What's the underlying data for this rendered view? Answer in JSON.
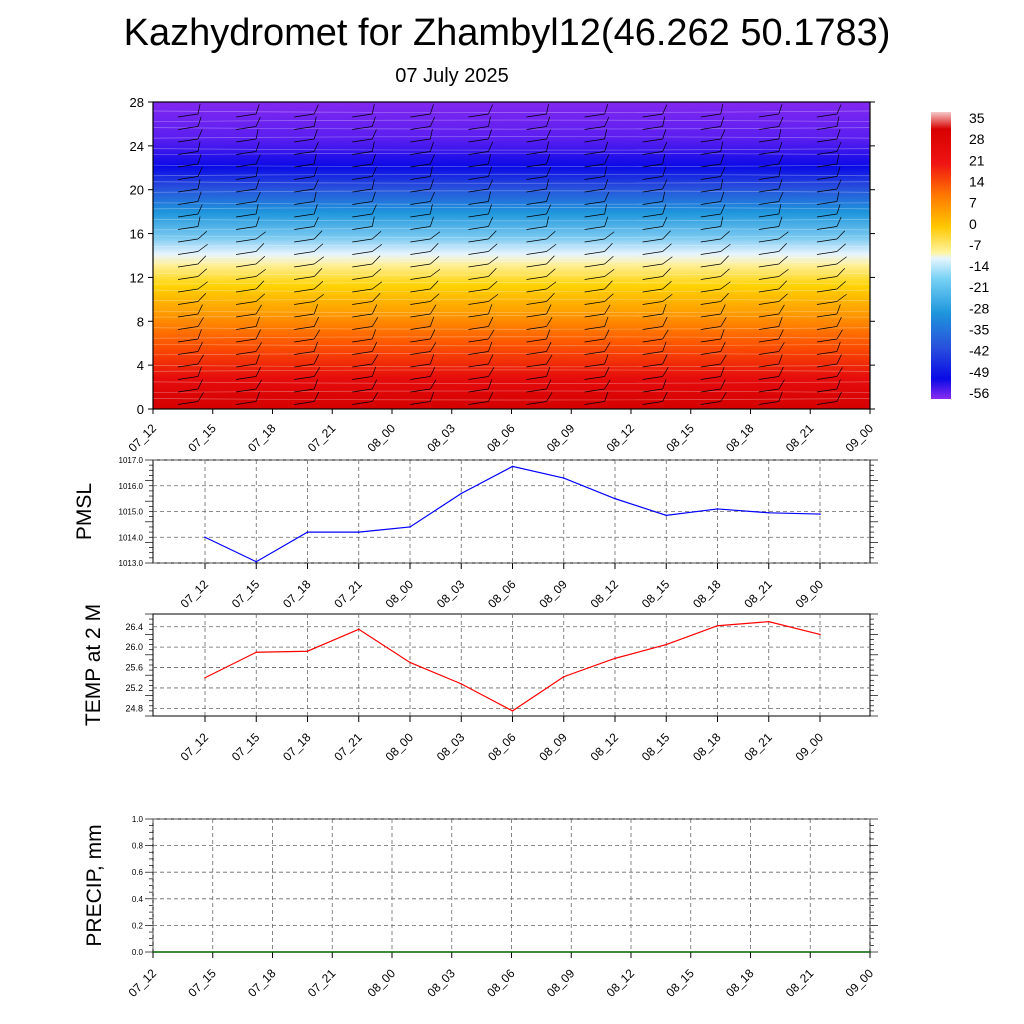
{
  "title": "Kazhydromet for Zhambyl12(46.262 50.1783)",
  "subtitle": "07 July 2025",
  "chart_data": [
    {
      "type": "heatmap",
      "y_ticks": [
        "0",
        "4",
        "8",
        "12",
        "16",
        "20",
        "24",
        "28"
      ],
      "ylim": [
        0,
        28
      ],
      "x_ticks": [
        "07_12",
        "07_15",
        "07_18",
        "07_21",
        "08_00",
        "08_03",
        "08_06",
        "08_09",
        "08_12",
        "08_15",
        "08_18",
        "08_21",
        "09_00"
      ],
      "colorbar_labels": [
        "35",
        "28",
        "21",
        "14",
        "7",
        "0",
        "-7",
        "-14",
        "-21",
        "-28",
        "-35",
        "-42",
        "-49",
        "-56"
      ],
      "note": "temperature field by height with wind barbs"
    },
    {
      "type": "line",
      "ylabel": "PMSL",
      "y_ticks": [
        "1013.0",
        "1014.0",
        "1015.0",
        "1016.0",
        "1017.0"
      ],
      "ylim": [
        1013.0,
        1017.0
      ],
      "x_ticks": [
        "07_12",
        "07_15",
        "07_18",
        "07_21",
        "08_00",
        "08_03",
        "08_06",
        "08_09",
        "08_12",
        "08_15",
        "08_18",
        "08_21",
        "09_00"
      ],
      "values": [
        1014.0,
        1013.05,
        1014.2,
        1014.2,
        1014.4,
        1015.7,
        1016.75,
        1016.3,
        1015.5,
        1014.85,
        1015.1,
        1014.95,
        1014.9
      ],
      "color": "#0000ff"
    },
    {
      "type": "line",
      "ylabel": "TEMP at 2 M",
      "y_ticks": [
        "24.8",
        "25.2",
        "25.6",
        "26.0",
        "26.4"
      ],
      "ylim": [
        24.65,
        26.65
      ],
      "x_ticks": [
        "07_12",
        "07_15",
        "07_18",
        "07_21",
        "08_00",
        "08_03",
        "08_06",
        "08_09",
        "08_12",
        "08_15",
        "08_18",
        "08_21",
        "09_00"
      ],
      "values": [
        25.4,
        25.9,
        25.92,
        26.35,
        25.7,
        25.28,
        24.75,
        25.42,
        25.78,
        26.05,
        26.42,
        26.5,
        26.25
      ],
      "color": "#ff0000"
    },
    {
      "type": "line",
      "ylabel": "PRECIP, mm",
      "y_ticks": [
        "0.0",
        "0.2",
        "0.4",
        "0.6",
        "0.8",
        "1.0"
      ],
      "ylim": [
        0.0,
        1.0
      ],
      "x_ticks": [
        "07_12",
        "07_15",
        "07_18",
        "07_21",
        "08_00",
        "08_03",
        "08_06",
        "08_09",
        "08_12",
        "08_15",
        "08_18",
        "08_21",
        "09_00"
      ],
      "values": [
        0,
        0,
        0,
        0,
        0,
        0,
        0,
        0,
        0,
        0,
        0,
        0,
        0
      ],
      "color": "#006400"
    }
  ]
}
